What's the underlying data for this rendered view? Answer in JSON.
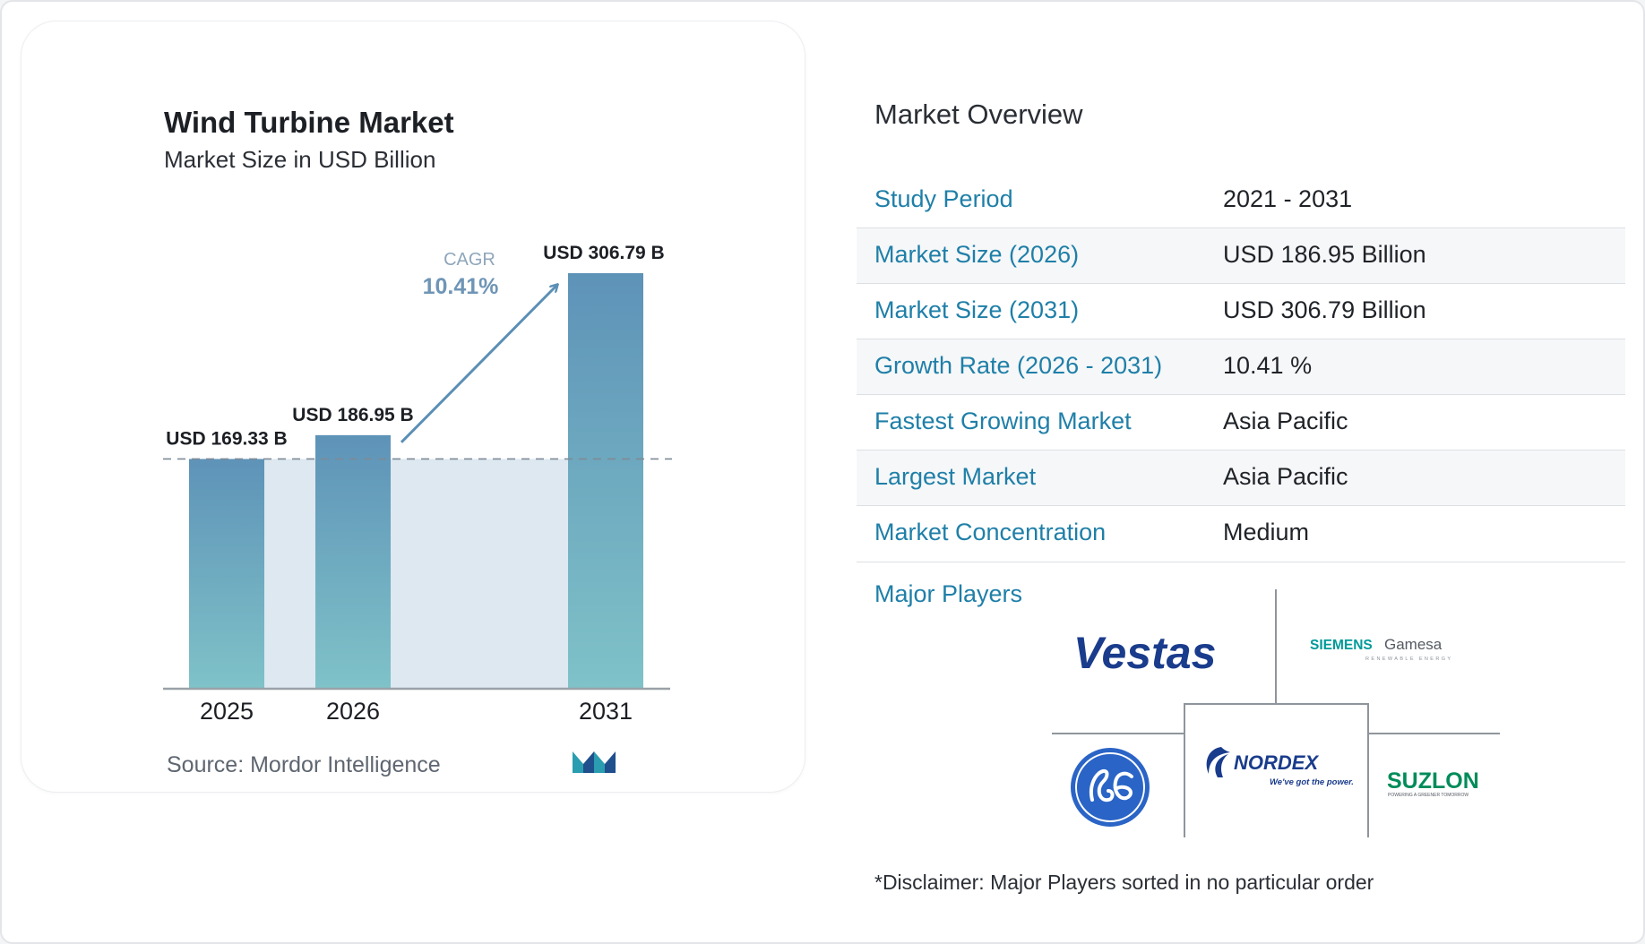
{
  "chart": {
    "title": "Wind Turbine Market",
    "subtitle": "Market Size in USD Billion",
    "source": "Source: Mordor Intelligence",
    "cagr_label": "CAGR",
    "cagr_value": "10.41%"
  },
  "chart_data": {
    "type": "bar",
    "title": "Wind Turbine Market",
    "subtitle": "Market Size in USD Billion",
    "categories": [
      "2025",
      "2026",
      "2031"
    ],
    "values": [
      169.33,
      186.95,
      306.79
    ],
    "data_labels": [
      "USD 169.33 B",
      "USD 186.95 B",
      "USD 306.79 B"
    ],
    "ylim": [
      0,
      306.79
    ],
    "grid": false,
    "bar_colors": {
      "top": "#5e93b8",
      "bottom": "#7fc2c8"
    },
    "reference_line_value": 169.33,
    "cagr": "10.41%"
  },
  "overview": {
    "title": "Market Overview",
    "rows": [
      {
        "key": "Study Period",
        "value": "2021 - 2031"
      },
      {
        "key": "Market Size (2026)",
        "value": "USD 186.95 Billion"
      },
      {
        "key": "Market Size (2031)",
        "value": "USD 306.79 Billion"
      },
      {
        "key": "Growth Rate (2026 - 2031)",
        "value": "10.41 %"
      },
      {
        "key": "Fastest Growing Market",
        "value": "Asia Pacific"
      },
      {
        "key": "Largest Market",
        "value": "Asia Pacific"
      },
      {
        "key": "Market Concentration",
        "value": "Medium"
      }
    ]
  },
  "players": {
    "title": "Major Players",
    "logos": [
      {
        "name": "Vestas",
        "text": "Vestas",
        "color": "#1a3c8c"
      },
      {
        "name": "Siemens Gamesa",
        "text": "SIEMENS",
        "text2": "Gamesa",
        "tagline": "RENEWABLE ENERGY",
        "color": "#009999"
      },
      {
        "name": "GE",
        "color": "#2a64c6"
      },
      {
        "name": "Nordex",
        "text": "NORDEX",
        "tagline": "We've got the power.",
        "color": "#1a3c8c"
      },
      {
        "name": "Suzlon",
        "text": "SUZLON",
        "tagline": "POWERING A GREENER TOMORROW",
        "color": "#008c5a"
      }
    ]
  },
  "disclaimer": "*Disclaimer: Major Players sorted in no particular order",
  "colors": {
    "accent": "#1f7fa8",
    "bar_top": "#5e93b8",
    "bar_bottom": "#7fc2c8",
    "shade": "#dde8f0",
    "arrow": "#5b8fb5"
  }
}
